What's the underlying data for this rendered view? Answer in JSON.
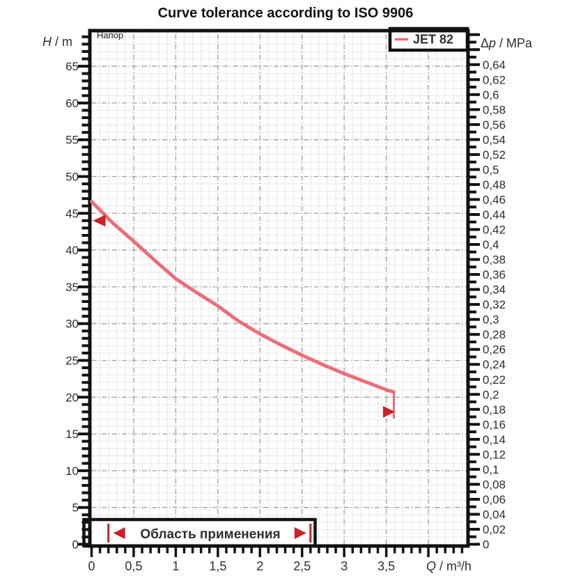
{
  "title": "Curve tolerance according to ISO 9906",
  "colors": {
    "curve": "#ec6d78",
    "accent_red": "#cc2026",
    "frame": "#111111",
    "grid_major": "#9e9ea0",
    "grid_minor": "#e6e6e6",
    "label": "#2e2e2e"
  },
  "chart_data": {
    "type": "line",
    "title": "Curve tolerance according to ISO 9906",
    "inner_label": "Напор",
    "legend": {
      "position": "top-right",
      "entries": [
        {
          "label": "JET 82",
          "color": "#ec6d78"
        }
      ]
    },
    "x_axis": {
      "symbol": "Q",
      "unit": "m³/h",
      "label": "Q / m³/h",
      "min": 0,
      "max": 4.45,
      "major_step": 0.5,
      "minor_step": 0.1,
      "tick_labels": [
        "0",
        "0,5",
        "1",
        "1,5",
        "2",
        "2,5",
        "3",
        "3,5"
      ]
    },
    "y_axis_left": {
      "symbol": "H",
      "unit": "m",
      "label": "H / m",
      "min": 0,
      "max": 69.6,
      "major_step": 5,
      "minor_step": 1,
      "tick_labels": [
        "0",
        "5",
        "10",
        "15",
        "20",
        "25",
        "30",
        "35",
        "40",
        "45",
        "50",
        "55",
        "60",
        "65"
      ]
    },
    "y_axis_right": {
      "prefix": "Δ",
      "symbol": "p",
      "unit": "MPa",
      "label": "Δp / MPa",
      "min": 0,
      "max": 0.683,
      "major_step": 0.02,
      "minor_step": 0.01,
      "tick_labels": [
        "0",
        "0,02",
        "0,04",
        "0,06",
        "0,08",
        "0,1",
        "0,12",
        "0,14",
        "0,16",
        "0,18",
        "0,2",
        "0,22",
        "0,24",
        "0,26",
        "0,28",
        "0,3",
        "0,32",
        "0,34",
        "0,36",
        "0,38",
        "0,4",
        "0,42",
        "0,44",
        "0,46",
        "0,48",
        "0,5",
        "0,52",
        "0,54",
        "0,56",
        "0,58",
        "0,6",
        "0,62",
        "0,64"
      ]
    },
    "grid": {
      "major": "dash-dot every 5 m / 0.5 m³/h",
      "minor": "solid fine every 1 m / 0.1 m³/h"
    },
    "series": [
      {
        "name": "JET 82",
        "color": "#ec6d78",
        "points_q_h": [
          [
            0,
            46.6
          ],
          [
            0.25,
            43.7
          ],
          [
            0.5,
            41.2
          ],
          [
            0.75,
            38.6
          ],
          [
            1.0,
            36.1
          ],
          [
            1.25,
            34.2
          ],
          [
            1.5,
            32.4
          ],
          [
            1.75,
            30.3
          ],
          [
            2.0,
            28.6
          ],
          [
            2.25,
            27.1
          ],
          [
            2.5,
            25.7
          ],
          [
            2.75,
            24.4
          ],
          [
            3.0,
            23.2
          ],
          [
            3.25,
            22.1
          ],
          [
            3.5,
            21.0
          ],
          [
            3.59,
            20.7
          ]
        ],
        "end_drop_to_h": 17.1
      }
    ],
    "annotations": {
      "range_label": "Область применения",
      "range_q": [
        0.2,
        2.6
      ],
      "start_marker": {
        "q": 0,
        "h": 44,
        "direction": "left"
      },
      "end_marker": {
        "q": 3.59,
        "h": 18,
        "direction": "right"
      }
    }
  }
}
